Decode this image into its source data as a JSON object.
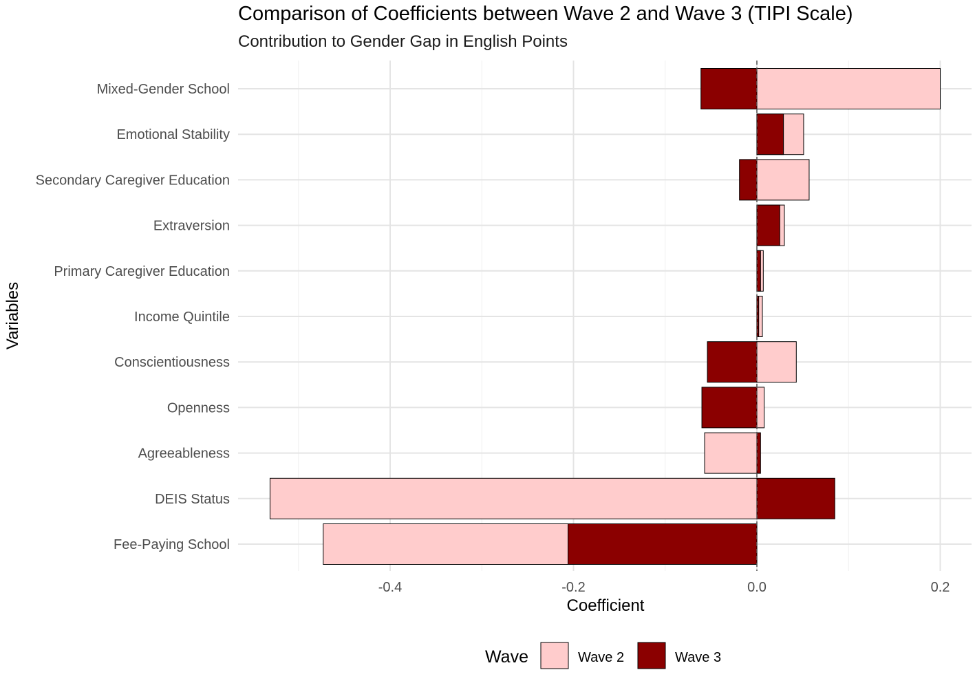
{
  "chart_data": {
    "type": "bar",
    "orientation": "horizontal",
    "title": "Comparison of Coefficients between Wave 2 and Wave 3 (TIPI Scale)",
    "subtitle": "Contribution to Gender Gap in English Points",
    "xlabel": "Coefficient",
    "ylabel": "Variables",
    "xlim": [
      -0.53,
      0.22
    ],
    "xticks": [
      -0.4,
      -0.2,
      0.0,
      0.2
    ],
    "xtick_labels": [
      "-0.4",
      "-0.2",
      "0.0",
      "0.2"
    ],
    "grid": true,
    "legend_position": "bottom",
    "legend_title": "Wave",
    "categories": [
      "Mixed-Gender School",
      "Emotional Stability",
      "Secondary Caregiver Education",
      "Extraversion",
      "Primary Caregiver Education",
      "Income Quintile",
      "Conscientiousness",
      "Openness",
      "Agreeableness",
      "DEIS Status",
      "Fee-Paying School"
    ],
    "series": [
      {
        "name": "Wave 2",
        "color": "#FFCCCC",
        "values": [
          0.2,
          0.051,
          0.057,
          0.03,
          0.007,
          0.006,
          0.043,
          0.008,
          -0.057,
          -0.531,
          -0.473
        ]
      },
      {
        "name": "Wave 3",
        "color": "#8B0000",
        "values": [
          -0.061,
          0.029,
          -0.019,
          0.025,
          0.004,
          0.002,
          -0.054,
          -0.06,
          0.004,
          0.085,
          -0.206
        ]
      }
    ]
  }
}
